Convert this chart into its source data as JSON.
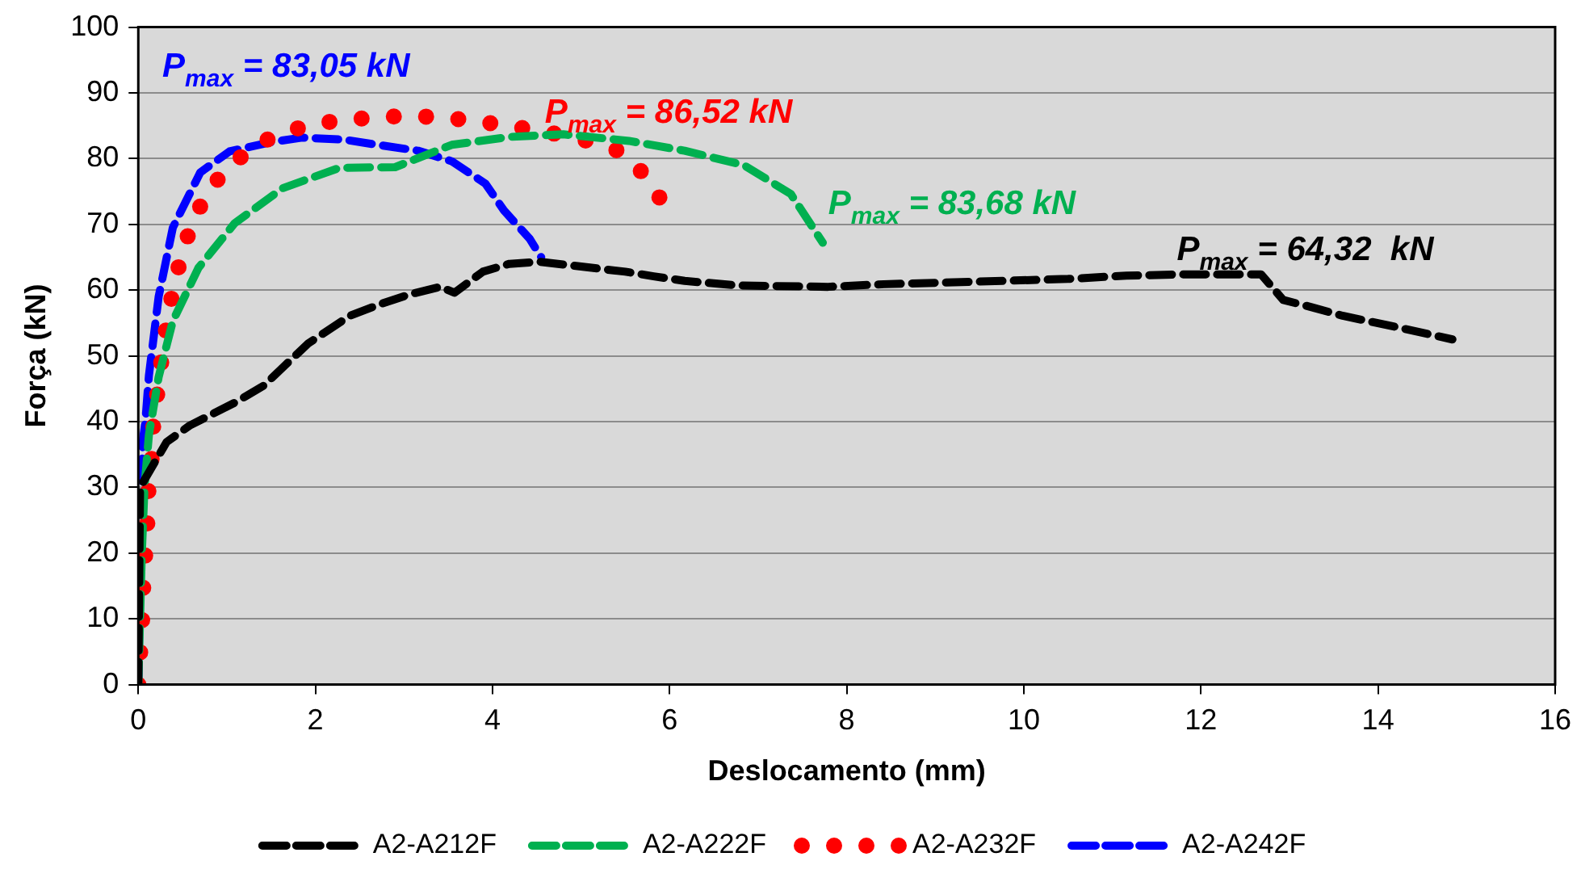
{
  "chart_data": {
    "type": "line",
    "xlabel": "Deslocamento (mm)",
    "ylabel": "Força (kN)",
    "xlim": [
      0,
      16
    ],
    "xticks": [
      0,
      2,
      4,
      6,
      8,
      10,
      12,
      14,
      16
    ],
    "ylim": [
      0,
      100
    ],
    "yticks": [
      0,
      10,
      20,
      30,
      40,
      50,
      60,
      70,
      80,
      90,
      100
    ],
    "grid": "y",
    "legend": "bottom",
    "marker": "none",
    "series": [
      {
        "name": "A2-A212F",
        "color": "#000000",
        "line_style": "dashed",
        "x": [
          0,
          0.02,
          0.32,
          0.58,
          1.12,
          1.42,
          1.66,
          1.92,
          2.39,
          2.72,
          3.05,
          3.41,
          3.57,
          3.89,
          4.19,
          4.54,
          5.5,
          5.82,
          6.17,
          6.78,
          7.79,
          8.42,
          9.5,
          10.5,
          11.16,
          11.79,
          12.13,
          12.68,
          12.93,
          13.25,
          13.6,
          14.2,
          14.84
        ],
        "values": [
          0,
          30,
          36.9,
          39.4,
          43.1,
          45.5,
          48.6,
          51.9,
          56.1,
          57.8,
          59.3,
          60.5,
          59.6,
          62.8,
          64,
          64.3,
          62.8,
          62.1,
          61.4,
          60.7,
          60.5,
          60.9,
          61.3,
          61.7,
          62.2,
          62.4,
          62.4,
          62.4,
          58.5,
          57.4,
          56.1,
          54.4,
          52.5
        ]
      },
      {
        "name": "A2-A222F",
        "color": "#00b050",
        "line_style": "dashed",
        "x": [
          0,
          0.02,
          0.04,
          0.07,
          0.12,
          0.23,
          0.39,
          0.68,
          1.09,
          1.63,
          2.27,
          2.9,
          3.54,
          4.19,
          4.8,
          5.54,
          6.17,
          6.84,
          7.37,
          7.73
        ],
        "values": [
          0,
          10,
          20,
          30,
          38,
          46.8,
          55.3,
          63.4,
          70.2,
          75.5,
          78.6,
          78.7,
          82.1,
          83.3,
          83.7,
          82.7,
          81.2,
          79,
          74.6,
          67.2
        ]
      },
      {
        "name": "A2-A232F",
        "color": "#ff0000",
        "line_style": "dotted",
        "x": [
          0,
          0.01,
          0.04,
          0.05,
          0.07,
          0.1,
          0.11,
          0.15,
          0.17,
          0.22,
          0.27,
          0.33,
          0.4,
          0.5,
          0.63,
          0.82,
          1.09,
          1.42,
          1.8,
          2.2,
          2.6,
          3.01,
          3.42,
          3.82,
          4.22,
          4.63,
          5.02,
          5.42,
          5.7,
          5.92
        ],
        "values": [
          0,
          3,
          8.1,
          13.3,
          18.3,
          23.6,
          28.9,
          34.2,
          39.7,
          44.8,
          50.2,
          55.5,
          60.6,
          65.9,
          71,
          75.7,
          79.6,
          82.7,
          84.6,
          85.7,
          86.2,
          86.5,
          86.3,
          85.7,
          84.9,
          84,
          82.9,
          81.2,
          77.8,
          73.4
        ]
      },
      {
        "name": "A2-A242F",
        "color": "#0000ff",
        "line_style": "dashed",
        "x": [
          0,
          0.04,
          0.05,
          0.08,
          0.12,
          0.23,
          0.39,
          0.7,
          1.03,
          1.5,
          1.85,
          2.32,
          2.7,
          3.16,
          3.54,
          3.92,
          4.13,
          4.42,
          4.55
        ],
        "values": [
          0,
          30,
          37,
          40,
          47,
          59,
          69.5,
          77.9,
          81.1,
          82.5,
          83.2,
          82.9,
          82.1,
          81.2,
          79.6,
          76.2,
          72.1,
          67.8,
          65
        ]
      }
    ],
    "annotations": [
      "P$_{max}$ = 64,32  kN",
      "P$_{max}$ = 83,68 kN",
      "P$_{max}$ = 86,52 kN",
      "P$_{max}$ = 83,05 kN"
    ]
  }
}
